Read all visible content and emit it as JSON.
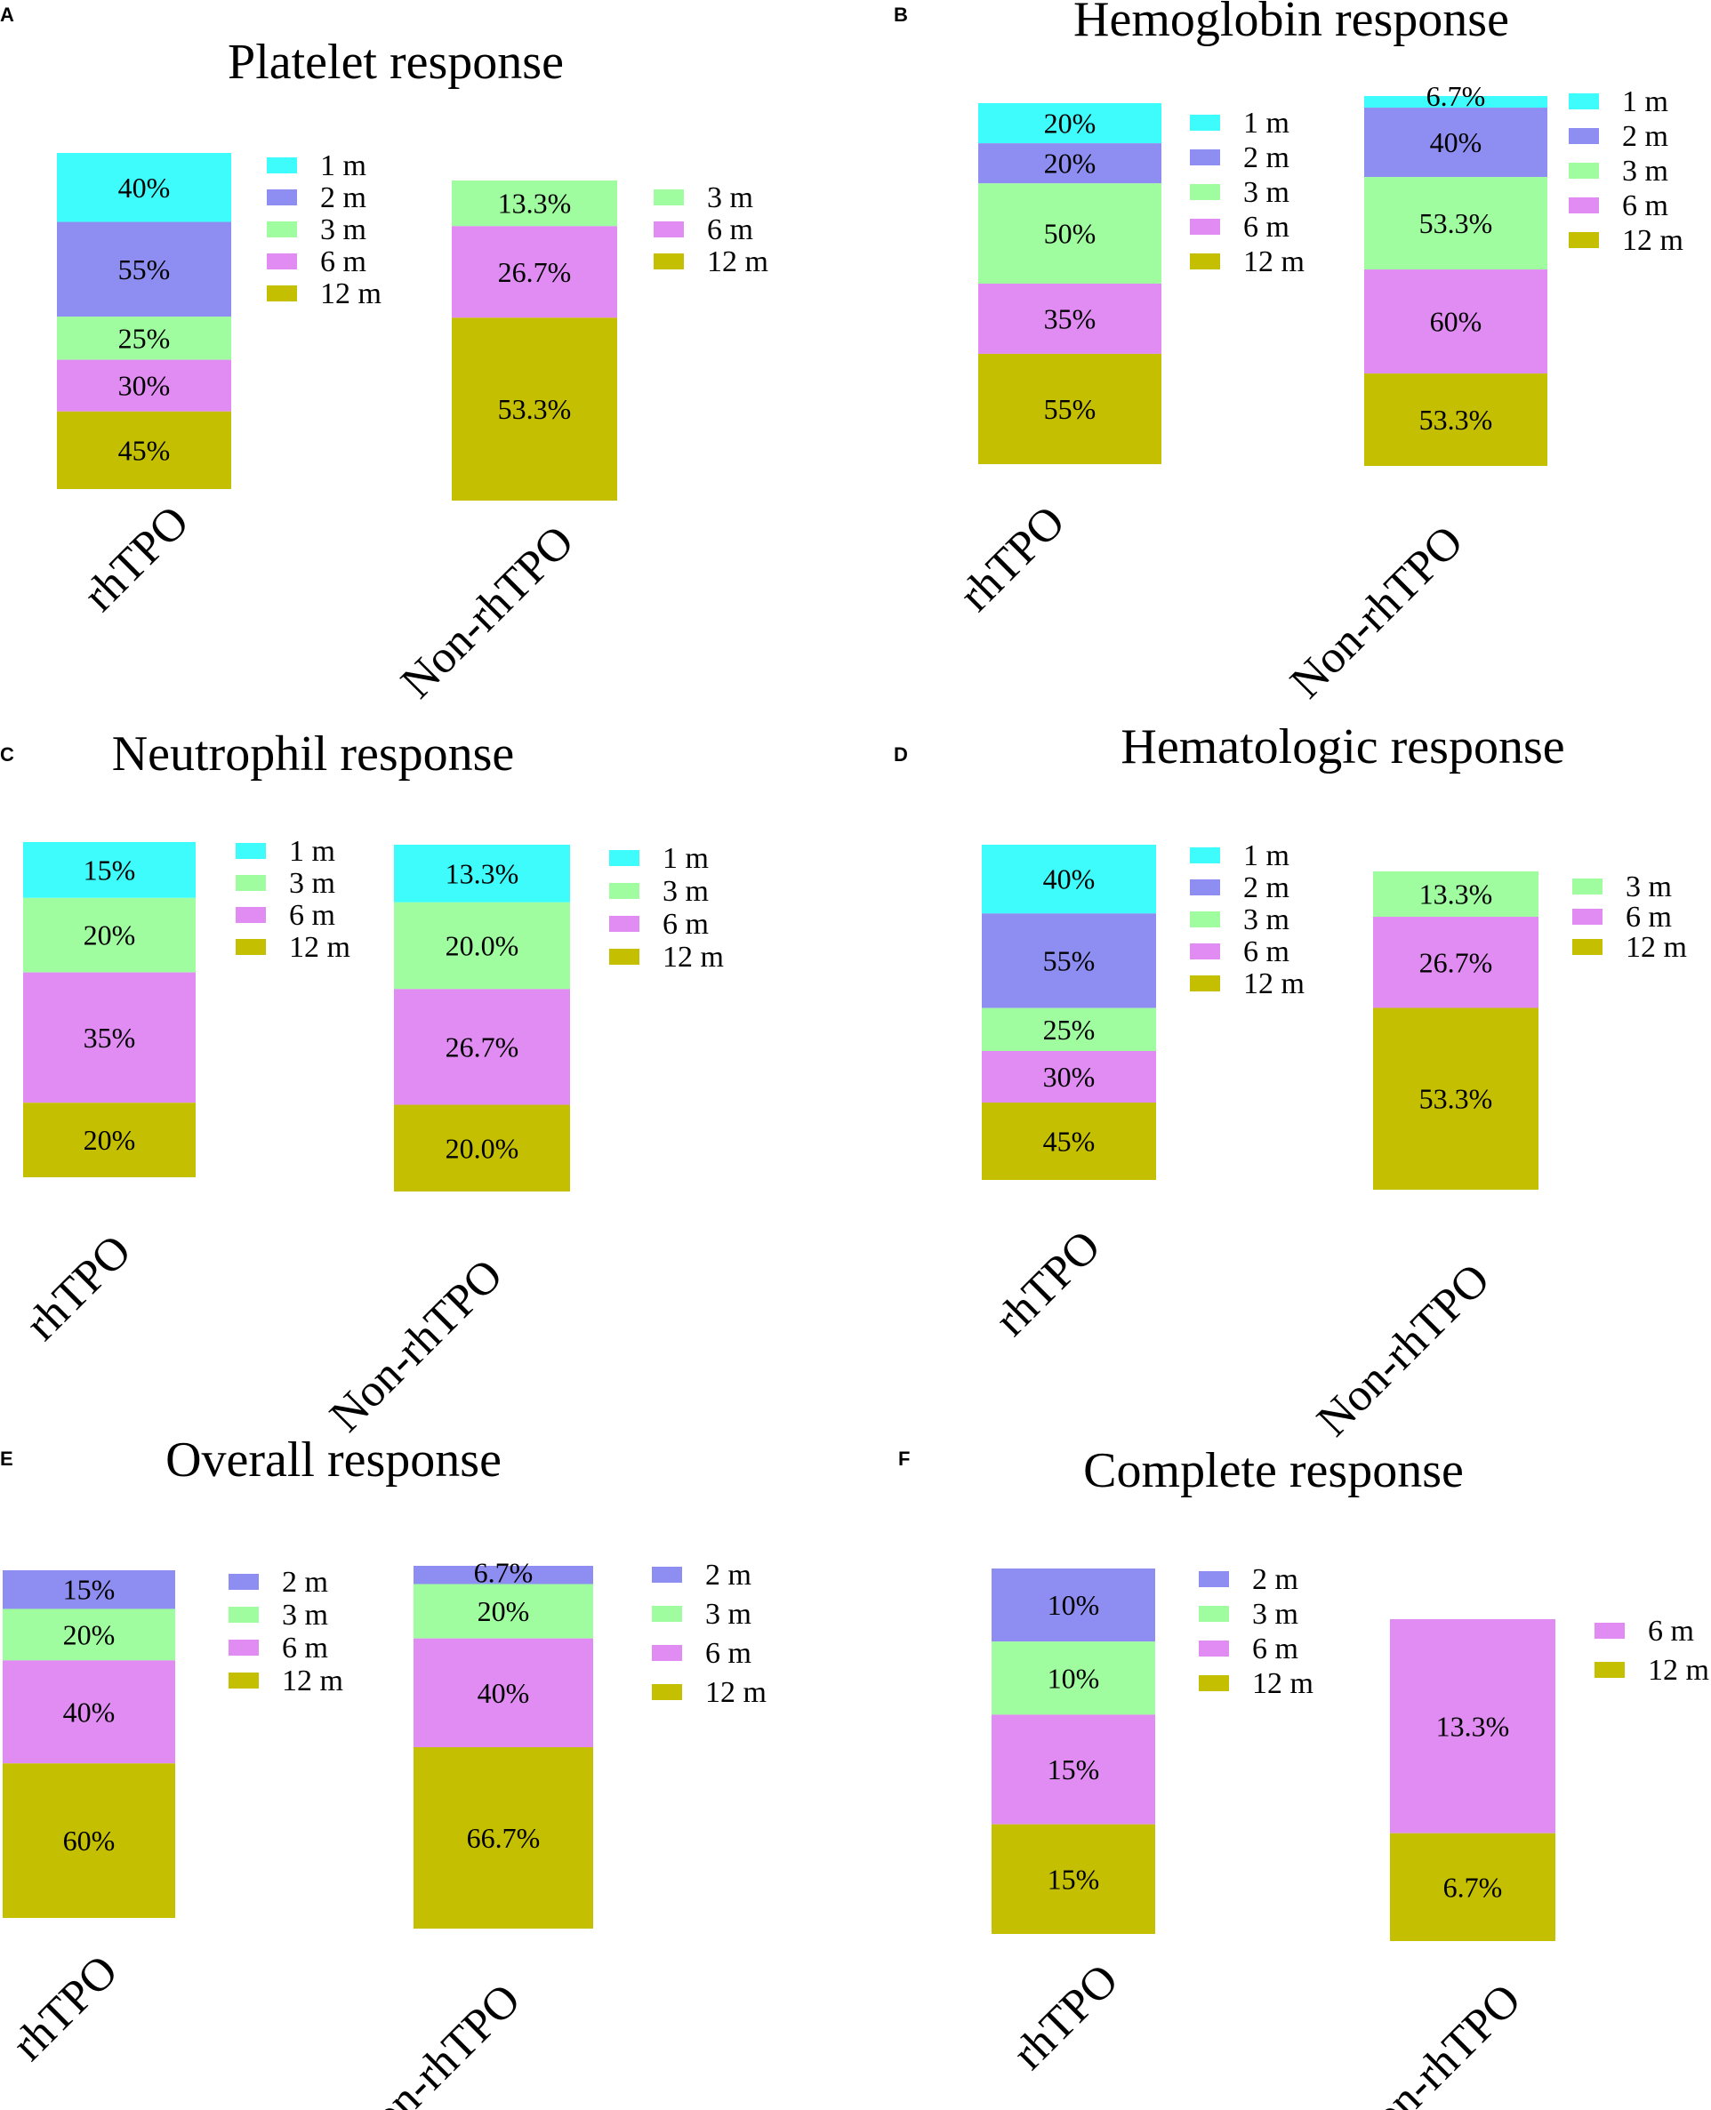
{
  "colors": {
    "1 m": "#3ffcfc",
    "2 m": "#8e8ef2",
    "3 m": "#9ffc9f",
    "6 m": "#e08cf2",
    "12 m": "#c4bf00"
  },
  "chart_data": [
    {
      "letter": "A",
      "type": "bar",
      "stacked": true,
      "title": "Platelet response",
      "categories": [
        "rhTPO",
        "Non-rhTPO"
      ],
      "bars": [
        {
          "category": "rhTPO",
          "legend": [
            "1 m",
            "2 m",
            "3 m",
            "6 m",
            "12 m"
          ],
          "segments": [
            {
              "period": "1 m",
              "label": "40%",
              "value": 40
            },
            {
              "period": "2 m",
              "label": "55%",
              "value": 55
            },
            {
              "period": "3 m",
              "label": "25%",
              "value": 25
            },
            {
              "period": "6 m",
              "label": "30%",
              "value": 30
            },
            {
              "period": "12 m",
              "label": "45%",
              "value": 45
            }
          ]
        },
        {
          "category": "Non-rhTPO",
          "legend": [
            "3 m",
            "6 m",
            "12 m"
          ],
          "segments": [
            {
              "period": "3 m",
              "label": "13.3%",
              "value": 13.3
            },
            {
              "period": "6 m",
              "label": "26.7%",
              "value": 26.7
            },
            {
              "period": "12 m",
              "label": "53.3%",
              "value": 53.3
            }
          ]
        }
      ]
    },
    {
      "letter": "B",
      "type": "bar",
      "stacked": true,
      "title": "Hemoglobin response",
      "categories": [
        "rhTPO",
        "Non-rhTPO"
      ],
      "bars": [
        {
          "category": "rhTPO",
          "legend": [
            "1 m",
            "2 m",
            "3 m",
            "6 m",
            "12 m"
          ],
          "segments": [
            {
              "period": "1 m",
              "label": "20%",
              "value": 20
            },
            {
              "period": "2 m",
              "label": "20%",
              "value": 20
            },
            {
              "period": "3 m",
              "label": "50%",
              "value": 50
            },
            {
              "period": "6 m",
              "label": "35%",
              "value": 35
            },
            {
              "period": "12 m",
              "label": "55%",
              "value": 55
            }
          ]
        },
        {
          "category": "Non-rhTPO",
          "legend": [
            "1 m",
            "2 m",
            "3 m",
            "6 m",
            "12 m"
          ],
          "segments": [
            {
              "period": "1 m",
              "label": "6.7%",
              "value": 6.7
            },
            {
              "period": "2 m",
              "label": "40%",
              "value": 40
            },
            {
              "period": "3 m",
              "label": "53.3%",
              "value": 53.3
            },
            {
              "period": "6 m",
              "label": "60%",
              "value": 60
            },
            {
              "period": "12 m",
              "label": "53.3%",
              "value": 53.3
            }
          ]
        }
      ]
    },
    {
      "letter": "C",
      "type": "bar",
      "stacked": true,
      "title": "Neutrophil response",
      "categories": [
        "rhTPO",
        "Non-rhTPO"
      ],
      "bars": [
        {
          "category": "rhTPO",
          "legend": [
            "1 m",
            "3 m",
            "6 m",
            "12 m"
          ],
          "segments": [
            {
              "period": "1 m",
              "label": "15%",
              "value": 15
            },
            {
              "period": "3 m",
              "label": "20%",
              "value": 20
            },
            {
              "period": "6 m",
              "label": "35%",
              "value": 35
            },
            {
              "period": "12 m",
              "label": "20%",
              "value": 20
            }
          ]
        },
        {
          "category": "Non-rhTPO",
          "legend": [
            "1 m",
            "3 m",
            "6 m",
            "12 m"
          ],
          "segments": [
            {
              "period": "1 m",
              "label": "13.3%",
              "value": 13.3
            },
            {
              "period": "3 m",
              "label": "20.0%",
              "value": 20.0
            },
            {
              "period": "6 m",
              "label": "26.7%",
              "value": 26.7
            },
            {
              "period": "12 m",
              "label": "20.0%",
              "value": 20.0
            }
          ]
        }
      ]
    },
    {
      "letter": "D",
      "type": "bar",
      "stacked": true,
      "title": "Hematologic response",
      "categories": [
        "rhTPO",
        "Non-rhTPO"
      ],
      "bars": [
        {
          "category": "rhTPO",
          "legend": [
            "1 m",
            "2 m",
            "3 m",
            "6 m",
            "12 m"
          ],
          "segments": [
            {
              "period": "1 m",
              "label": "40%",
              "value": 40
            },
            {
              "period": "2 m",
              "label": "55%",
              "value": 55
            },
            {
              "period": "3 m",
              "label": "25%",
              "value": 25
            },
            {
              "period": "6 m",
              "label": "30%",
              "value": 30
            },
            {
              "period": "12 m",
              "label": "45%",
              "value": 45
            }
          ]
        },
        {
          "category": "Non-rhTPO",
          "legend": [
            "3 m",
            "6 m",
            "12 m"
          ],
          "segments": [
            {
              "period": "3 m",
              "label": "13.3%",
              "value": 13.3
            },
            {
              "period": "6 m",
              "label": "26.7%",
              "value": 26.7
            },
            {
              "period": "12 m",
              "label": "53.3%",
              "value": 53.3
            }
          ]
        }
      ]
    },
    {
      "letter": "E",
      "type": "bar",
      "stacked": true,
      "title": "Overall  response",
      "categories": [
        "rhTPO",
        "Non-rhTPO"
      ],
      "bars": [
        {
          "category": "rhTPO",
          "legend": [
            "2 m",
            "3 m",
            "6 m",
            "12 m"
          ],
          "segments": [
            {
              "period": "2 m",
              "label": "15%",
              "value": 15
            },
            {
              "period": "3 m",
              "label": "20%",
              "value": 20
            },
            {
              "period": "6 m",
              "label": "40%",
              "value": 40
            },
            {
              "period": "12 m",
              "label": "60%",
              "value": 60
            }
          ]
        },
        {
          "category": "Non-rhTPO",
          "legend": [
            "2 m",
            "3 m",
            "6 m",
            "12 m"
          ],
          "segments": [
            {
              "period": "2 m",
              "label": "6.7%",
              "value": 6.7
            },
            {
              "period": "3 m",
              "label": "20%",
              "value": 20
            },
            {
              "period": "6 m",
              "label": "40%",
              "value": 40
            },
            {
              "period": "12 m",
              "label": "66.7%",
              "value": 66.7
            }
          ]
        }
      ]
    },
    {
      "letter": "F",
      "type": "bar",
      "stacked": true,
      "title": "Complete response",
      "categories": [
        "rhTPO",
        "Non-rhTPO"
      ],
      "bars": [
        {
          "category": "rhTPO",
          "legend": [
            "2 m",
            "3 m",
            "6 m",
            "12 m"
          ],
          "segments": [
            {
              "period": "2 m",
              "label": "10%",
              "value": 10
            },
            {
              "period": "3 m",
              "label": "10%",
              "value": 10
            },
            {
              "period": "6 m",
              "label": "15%",
              "value": 15
            },
            {
              "period": "12 m",
              "label": "15%",
              "value": 15
            }
          ]
        },
        {
          "category": "Non-rhTPO",
          "legend": [
            "6 m",
            "12 m"
          ],
          "segments": [
            {
              "period": "6 m",
              "label": "13.3%",
              "value": 13.3
            },
            {
              "period": "12 m",
              "label": "6.7%",
              "value": 6.7
            }
          ]
        }
      ]
    }
  ]
}
